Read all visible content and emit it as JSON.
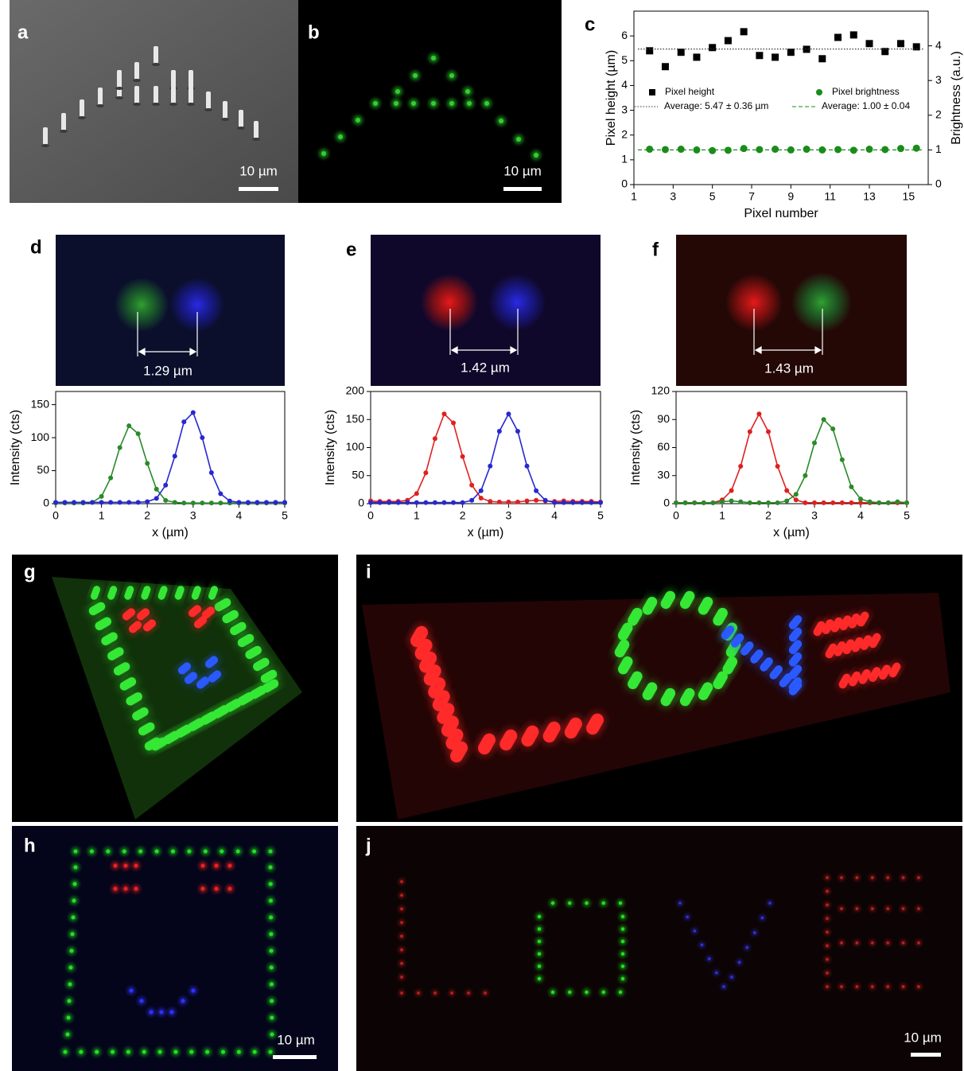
{
  "panels": {
    "a": {
      "label": "a",
      "scale_bar": "10 µm"
    },
    "b": {
      "label": "b",
      "scale_bar": "10 µm"
    },
    "c": {
      "label": "c"
    },
    "d": {
      "label": "d",
      "distance": "1.29 µm"
    },
    "e": {
      "label": "e",
      "distance": "1.42 µm"
    },
    "f": {
      "label": "f",
      "distance": "1.43 µm"
    },
    "g": {
      "label": "g"
    },
    "h": {
      "label": "h",
      "scale_bar": "10 µm"
    },
    "i": {
      "label": "i"
    },
    "j": {
      "label": "j",
      "scale_bar": "10 µm"
    }
  },
  "chart_data": [
    {
      "type": "scatter",
      "xlabel": "Pixel number",
      "ylabel": "Pixel height (µm)",
      "y2label": "Brightness (a.u.)",
      "x": [
        1.8,
        2.6,
        3.4,
        4.2,
        5.0,
        5.8,
        6.6,
        7.4,
        8.2,
        9.0,
        9.8,
        10.6,
        11.4,
        12.2,
        13.0,
        13.8,
        14.6,
        15.4
      ],
      "series": [
        {
          "name": "Pixel height",
          "color": "#000000",
          "marker": "square",
          "values": [
            5.4,
            4.76,
            5.34,
            5.14,
            5.53,
            5.81,
            6.17,
            5.21,
            5.14,
            5.34,
            5.46,
            5.08,
            5.94,
            6.04,
            5.69,
            5.37,
            5.69,
            5.56
          ]
        },
        {
          "name": "Pixel brightness",
          "color": "#1a8c1a",
          "marker": "circle",
          "axis": "y2",
          "values": [
            1.02,
            1.01,
            1.02,
            1.0,
            0.98,
            0.99,
            1.04,
            1.01,
            1.02,
            1.0,
            1.02,
            1.0,
            1.01,
            0.99,
            1.02,
            1.01,
            1.04,
            1.05
          ]
        }
      ],
      "average_lines": [
        {
          "label": "Average: 5.47 ± 0.36 µm",
          "value": 5.47,
          "color": "#333333",
          "linestyle": "dotted"
        },
        {
          "label": "Average: 1.00 ± 0.04",
          "value": 1.0,
          "color": "#1a8c1a",
          "linestyle": "dashed",
          "axis": "y2"
        }
      ],
      "xlim": [
        1,
        16
      ],
      "xticks": [
        1,
        3,
        5,
        7,
        9,
        11,
        13,
        15
      ],
      "ylim": [
        0,
        7
      ],
      "yticks": [
        0,
        1,
        2,
        3,
        4,
        5,
        6
      ],
      "y2lim": [
        0,
        5
      ],
      "y2ticks": [
        0,
        1,
        2,
        3,
        4
      ]
    },
    {
      "type": "line",
      "xlabel": "x (µm)",
      "ylabel": "Intensity (cts)",
      "x": [
        0,
        0.2,
        0.4,
        0.6,
        0.8,
        1.0,
        1.2,
        1.4,
        1.6,
        1.8,
        2.0,
        2.2,
        2.4,
        2.6,
        2.8,
        3.0,
        3.2,
        3.4,
        3.6,
        3.8,
        4.0,
        4.2,
        4.4,
        4.6,
        4.8,
        5.0
      ],
      "series": [
        {
          "color": "#2a8a2a",
          "values": [
            1,
            1,
            1,
            1,
            2,
            11,
            39,
            85,
            118,
            106,
            61,
            22,
            5,
            2,
            1,
            1,
            1,
            1,
            1,
            1,
            1,
            1,
            1,
            1,
            1,
            1
          ]
        },
        {
          "color": "#2828d0",
          "values": [
            2,
            2,
            2,
            2,
            2,
            2,
            2,
            2,
            2,
            2,
            3,
            8,
            28,
            72,
            124,
            138,
            100,
            47,
            15,
            4,
            2,
            2,
            2,
            2,
            2,
            2
          ]
        }
      ],
      "xlim": [
        0,
        5
      ],
      "xticks": [
        0,
        1,
        2,
        3,
        4,
        5
      ],
      "ylim": [
        0,
        170
      ],
      "yticks": [
        0,
        50,
        100,
        150
      ]
    },
    {
      "type": "line",
      "xlabel": "x (µm)",
      "ylabel": "Intensity (cts)",
      "x": [
        0,
        0.2,
        0.4,
        0.6,
        0.8,
        1.0,
        1.2,
        1.4,
        1.6,
        1.8,
        2.0,
        2.2,
        2.4,
        2.6,
        2.8,
        3.0,
        3.2,
        3.4,
        3.6,
        3.8,
        4.0,
        4.2,
        4.4,
        4.6,
        4.8,
        5.0
      ],
      "series": [
        {
          "color": "#e02020",
          "values": [
            5,
            4,
            4,
            4,
            6,
            18,
            55,
            116,
            160,
            144,
            84,
            33,
            10,
            4,
            3,
            3,
            3,
            5,
            6,
            5,
            4,
            5,
            4,
            4,
            4,
            3
          ]
        },
        {
          "color": "#2828d0",
          "values": [
            2,
            2,
            2,
            2,
            2,
            2,
            2,
            2,
            2,
            2,
            2,
            6,
            23,
            67,
            129,
            160,
            129,
            67,
            23,
            6,
            2,
            2,
            2,
            2,
            2,
            2
          ]
        }
      ],
      "xlim": [
        0,
        5
      ],
      "xticks": [
        0,
        1,
        2,
        3,
        4,
        5
      ],
      "ylim": [
        0,
        200
      ],
      "yticks": [
        0,
        50,
        100,
        150,
        200
      ]
    },
    {
      "type": "line",
      "xlabel": "x (µm)",
      "ylabel": "Intensity (cts)",
      "x": [
        0,
        0.2,
        0.4,
        0.6,
        0.8,
        1.0,
        1.2,
        1.4,
        1.6,
        1.8,
        2.0,
        2.2,
        2.4,
        2.6,
        2.8,
        3.0,
        3.2,
        3.4,
        3.6,
        3.8,
        4.0,
        4.2,
        4.4,
        4.6,
        4.8,
        5.0
      ],
      "series": [
        {
          "color": "#e02020",
          "values": [
            1,
            1,
            1,
            1,
            1,
            4,
            14,
            40,
            77,
            96,
            77,
            40,
            14,
            4,
            1,
            1,
            1,
            1,
            1,
            1,
            1,
            1,
            1,
            1,
            1,
            1
          ]
        },
        {
          "color": "#2a8a2a",
          "values": [
            1,
            1,
            1,
            1,
            1,
            2,
            3,
            2,
            1,
            1,
            1,
            1,
            3,
            10,
            30,
            65,
            90,
            80,
            47,
            18,
            5,
            2,
            1,
            1,
            2,
            1
          ]
        }
      ],
      "xlim": [
        0,
        5
      ],
      "xticks": [
        0,
        1,
        2,
        3,
        4,
        5
      ],
      "ylim": [
        0,
        120
      ],
      "yticks": [
        0,
        30,
        60,
        90,
        120
      ]
    }
  ]
}
